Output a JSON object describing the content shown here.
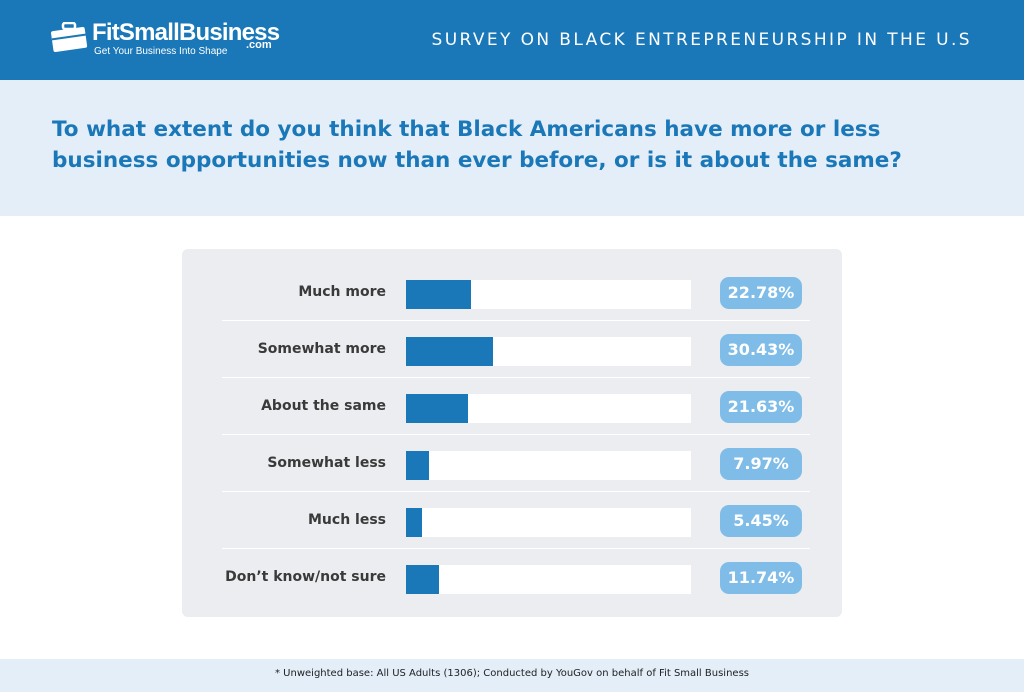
{
  "header": {
    "brand": "FitSmallBusiness",
    "brand_suffix": ".com",
    "tagline": "Get Your Business Into Shape",
    "logo_icon": "briefcase-icon",
    "survey_title": "SURVEY ON BLACK ENTREPRENEURSHIP IN THE U.S"
  },
  "question": "To what extent do you think that Black Americans have more or less business opportunities now than ever before, or is it about the same?",
  "chart_data": {
    "type": "bar",
    "orientation": "horizontal",
    "categories": [
      "Much more",
      "Somewhat more",
      "About the same",
      "Somewhat less",
      "Much less",
      "Don’t know/not sure"
    ],
    "values": [
      22.78,
      30.43,
      21.63,
      7.97,
      5.45,
      11.74
    ],
    "value_labels": [
      "22.78%",
      "30.43%",
      "21.63%",
      "7.97%",
      "5.45%",
      "11.74%"
    ],
    "xlim": [
      0,
      100
    ],
    "title": "",
    "xlabel": "",
    "ylabel": "",
    "bar_color": "#1a77b8",
    "track_color": "#ffffff",
    "label_pill_color": "#7fbde8"
  },
  "footer": {
    "note": "* Unweighted base: All US Adults (1306); Conducted by YouGov on behalf of Fit Small Business"
  },
  "colors": {
    "header_bg": "#1a77b8",
    "question_bg": "#e3eef8",
    "question_text": "#1a77b8",
    "panel_bg": "#ebedf0"
  }
}
